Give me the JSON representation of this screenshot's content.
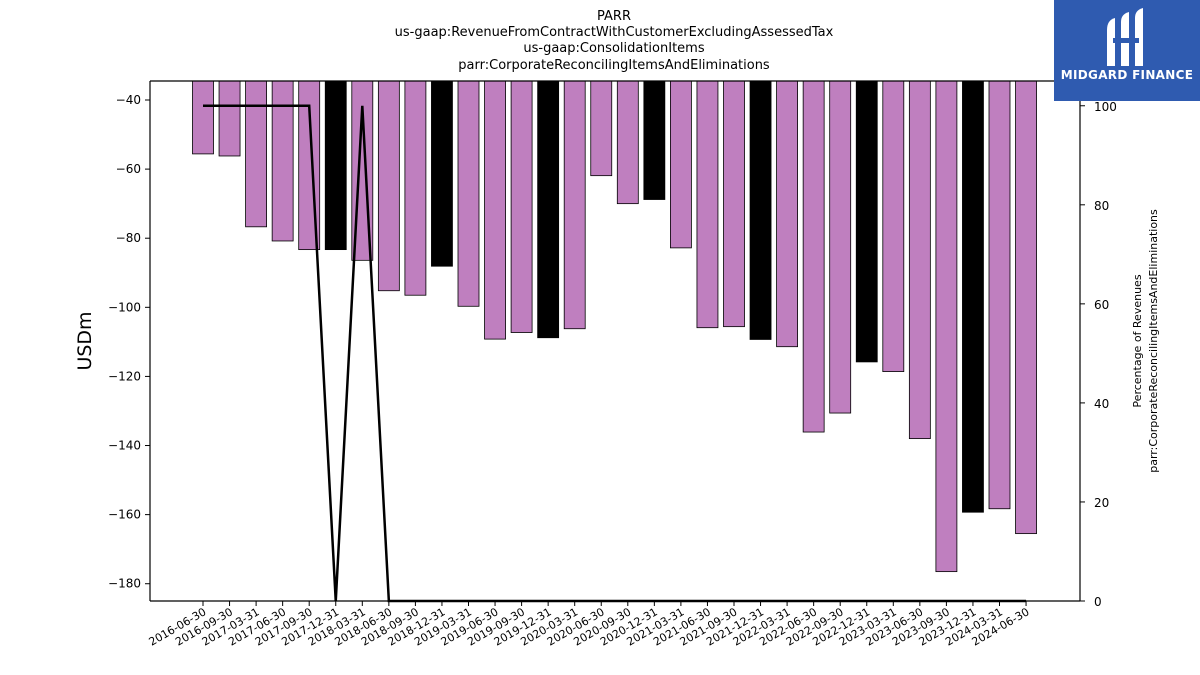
{
  "chart_data": {
    "type": "bar",
    "title_lines": [
      "PARR",
      "us-gaap:RevenueFromContractWithCustomerExcludingAssessedTax",
      "us-gaap:ConsolidationItems",
      "parr:CorporateReconcilingItemsAndEliminations"
    ],
    "ylabel": "USDm",
    "ylabel_right_lines": [
      "Percentage of Revenues",
      "parr:CorporateReconcilingItemsAndEliminations"
    ],
    "ylim": [
      -185,
      -34.5
    ],
    "yticks": [
      -40,
      -60,
      -80,
      -100,
      -120,
      -140,
      -160,
      -180
    ],
    "y2lim": [
      0,
      105
    ],
    "y2ticks": [
      0,
      20,
      40,
      60,
      80,
      100
    ],
    "categories": [
      "2016-06-30",
      "2016-09-30",
      "2017-03-31",
      "2017-06-30",
      "2017-09-30",
      "2017-12-31",
      "2018-03-31",
      "2018-06-30",
      "2018-09-30",
      "2018-12-31",
      "2019-03-31",
      "2019-06-30",
      "2019-09-30",
      "2019-12-31",
      "2020-03-31",
      "2020-06-30",
      "2020-09-30",
      "2020-12-31",
      "2021-03-31",
      "2021-06-30",
      "2021-09-30",
      "2021-12-31",
      "2022-03-31",
      "2022-06-30",
      "2022-09-30",
      "2022-12-31",
      "2023-03-31",
      "2023-06-30",
      "2023-09-30",
      "2023-12-31",
      "2024-03-31",
      "2024-06-30"
    ],
    "values": [
      -55.6,
      -56.2,
      -76.7,
      -80.8,
      -83.3,
      -83.3,
      -86.4,
      -95.2,
      -96.5,
      -88.1,
      -99.7,
      -109.2,
      -107.3,
      -108.8,
      -106.2,
      -61.9,
      -70.0,
      -68.8,
      -82.8,
      -105.9,
      -105.6,
      -109.3,
      -111.4,
      -136.1,
      -130.6,
      -115.8,
      -118.6,
      -138.0,
      -176.5,
      -159.3,
      -158.3,
      -165.5
    ],
    "highlighted": [
      false,
      false,
      false,
      false,
      false,
      true,
      false,
      false,
      false,
      true,
      false,
      false,
      false,
      true,
      false,
      false,
      false,
      true,
      false,
      false,
      false,
      true,
      false,
      false,
      false,
      true,
      false,
      false,
      false,
      true,
      false,
      false
    ],
    "bar_color": "#bf7fbf",
    "highlight_color": "#000000",
    "percentage_series": [
      100,
      100,
      100,
      100,
      100,
      0,
      100,
      0,
      0,
      0,
      0,
      0,
      0,
      0,
      0,
      0,
      0,
      0,
      0,
      0,
      0,
      0,
      0,
      0,
      0,
      0,
      0,
      0,
      0,
      0,
      0,
      0
    ],
    "line_color": "#000000",
    "grid": false
  },
  "logo": {
    "text": "MIDGARD FINANCE",
    "color": "#2f5bb0"
  }
}
